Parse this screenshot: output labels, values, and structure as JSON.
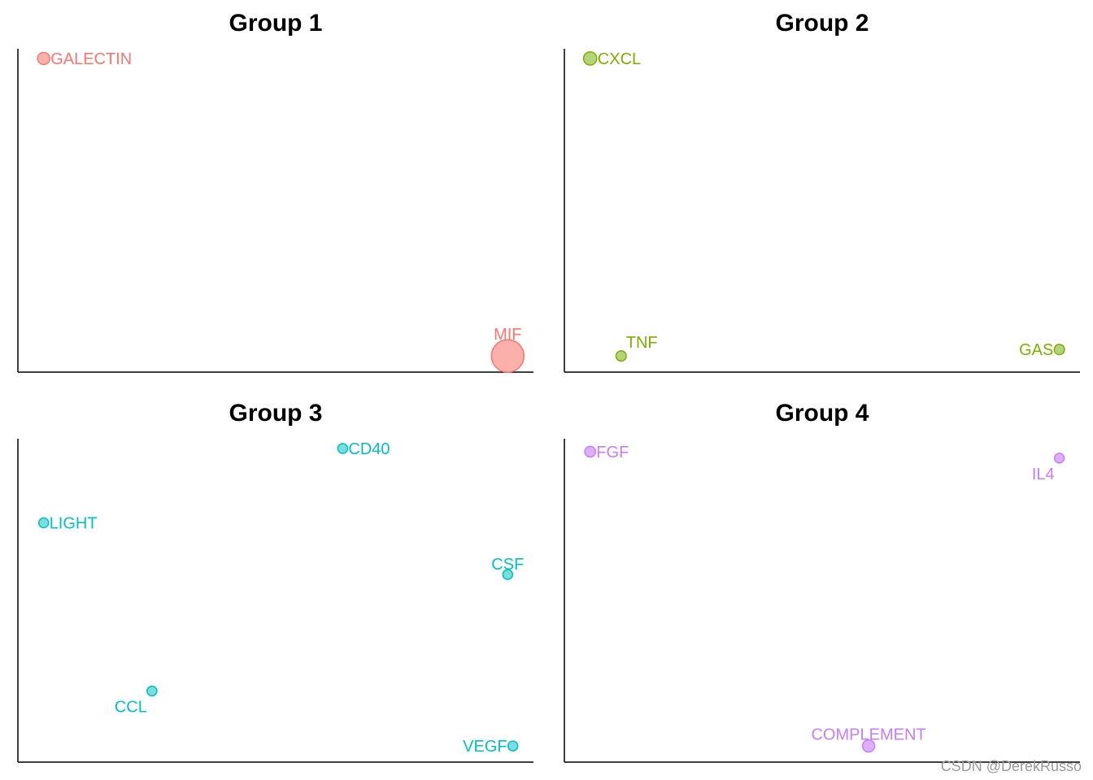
{
  "watermark": "CSDN @DerekRusso",
  "chart_data": [
    {
      "type": "scatter",
      "title": "Group 1",
      "color": "#F8766D",
      "fill": "#FBB0AB",
      "xlim": [
        0,
        1
      ],
      "ylim": [
        0,
        1
      ],
      "points": [
        {
          "label": "GALECTIN",
          "x": 0.05,
          "y": 0.97,
          "size": 1,
          "label_pos": "right"
        },
        {
          "label": "MIF",
          "x": 0.95,
          "y": 0.05,
          "size": 3,
          "label_pos": "top"
        }
      ]
    },
    {
      "type": "scatter",
      "title": "Group 2",
      "color": "#7CAE00",
      "fill": "#B5D47A",
      "xlim": [
        0,
        1
      ],
      "ylim": [
        0,
        1
      ],
      "points": [
        {
          "label": "CXCL",
          "x": 0.05,
          "y": 0.97,
          "size": 1.1,
          "label_pos": "right"
        },
        {
          "label": "TNF",
          "x": 0.11,
          "y": 0.05,
          "size": 0.8,
          "label_pos": "top-right"
        },
        {
          "label": "GAS",
          "x": 0.96,
          "y": 0.07,
          "size": 0.8,
          "label_pos": "left"
        }
      ]
    },
    {
      "type": "scatter",
      "title": "Group 3",
      "color": "#00BFC4",
      "fill": "#7ADDDE",
      "xlim": [
        0,
        1
      ],
      "ylim": [
        0,
        1
      ],
      "points": [
        {
          "label": "CD40",
          "x": 0.63,
          "y": 0.97,
          "size": 0.75,
          "label_pos": "right"
        },
        {
          "label": "LIGHT",
          "x": 0.05,
          "y": 0.74,
          "size": 0.75,
          "label_pos": "right"
        },
        {
          "label": "CSF",
          "x": 0.95,
          "y": 0.58,
          "size": 0.75,
          "label_pos": "top"
        },
        {
          "label": "CCL",
          "x": 0.26,
          "y": 0.22,
          "size": 0.75,
          "label_pos": "bottom-left"
        },
        {
          "label": "VEGF",
          "x": 0.96,
          "y": 0.05,
          "size": 0.75,
          "label_pos": "left"
        }
      ]
    },
    {
      "type": "scatter",
      "title": "Group 4",
      "color": "#C77CFF",
      "fill": "#DDB0FF",
      "xlim": [
        0,
        1
      ],
      "ylim": [
        0,
        1
      ],
      "points": [
        {
          "label": "FGF",
          "x": 0.05,
          "y": 0.96,
          "size": 0.85,
          "label_pos": "right"
        },
        {
          "label": "IL4",
          "x": 0.96,
          "y": 0.94,
          "size": 0.75,
          "label_pos": "bottom-left"
        },
        {
          "label": "COMPLEMENT",
          "x": 0.59,
          "y": 0.05,
          "size": 1,
          "label_pos": "top"
        }
      ]
    }
  ]
}
